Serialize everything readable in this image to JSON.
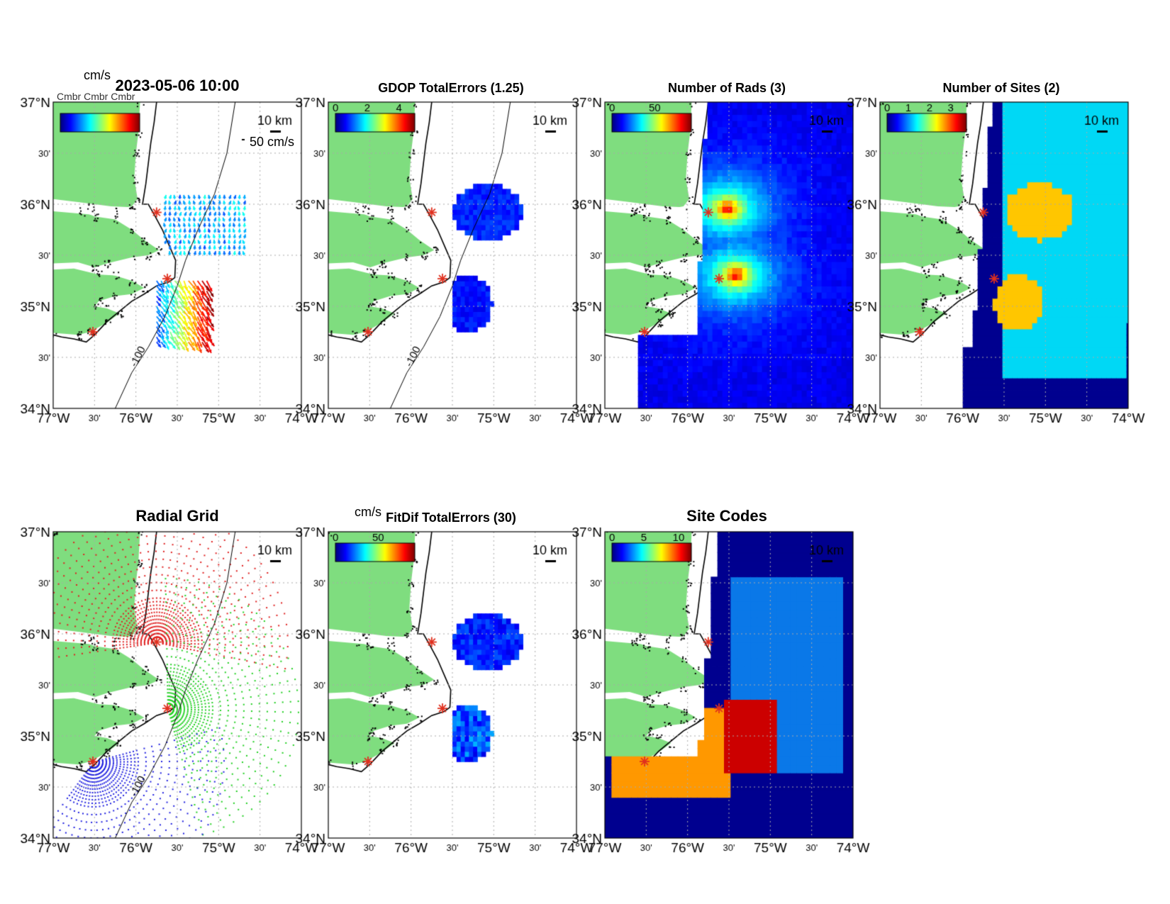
{
  "timestamp": "2023-05-06 10:00",
  "unit_label": "cm/s",
  "overlap_label": "Cmbr Cmbr Cmbr",
  "velocity_scale_label": "50 cm/s",
  "scale_bar_label": "10 km",
  "site_marker_color": "#e0301e",
  "land_color": "#7fdd7f",
  "ocean_dark": "#00008f",
  "lat_labels": [
    "37°N",
    "30'",
    "36°N",
    "30'",
    "35°N",
    "30'",
    "34°N"
  ],
  "lon_labels": [
    "77°W",
    "30'",
    "76°W",
    "30'",
    "75°W",
    "30'",
    "74°W"
  ],
  "panels": [
    {
      "title": "2023-05-06 10:00",
      "type": "currents",
      "colorbar_ticks": []
    },
    {
      "title": "GDOP TotalErrors (1.25)",
      "type": "gdop",
      "colorbar_ticks": [
        "0",
        "2",
        "4"
      ],
      "contour_label": "1.25"
    },
    {
      "title": "Number of Rads (3)",
      "type": "nrads",
      "colorbar_ticks": [
        "0",
        "50"
      ],
      "contour_label": "3"
    },
    {
      "title": "Number of Sites (2)",
      "type": "nsites",
      "colorbar_ticks": [
        "0",
        "1",
        "2",
        "3"
      ],
      "contour_label": "2"
    },
    {
      "title": "Radial Grid",
      "type": "radgrid",
      "colorbar_ticks": []
    },
    {
      "title": "FitDif TotalErrors (30)",
      "type": "fitdif",
      "colorbar_ticks": [
        "0",
        "50"
      ],
      "contour_label": "30",
      "unit_label": "cm/s"
    },
    {
      "title": "Site Codes",
      "type": "sitecodes",
      "colorbar_ticks": [
        "0",
        "5",
        "10"
      ]
    }
  ],
  "isobath_labels": [
    "-100",
    "-100"
  ]
}
